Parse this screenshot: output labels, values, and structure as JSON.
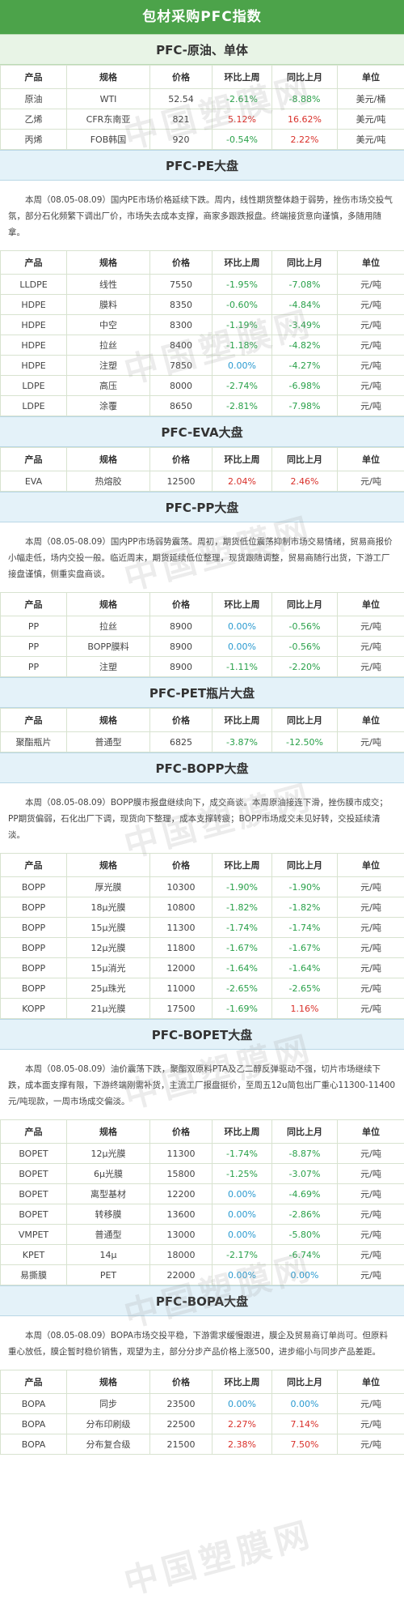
{
  "main_title": "包材采购PFC指数",
  "watermark": "中国塑膜网",
  "headers": [
    "产品",
    "规格",
    "价格",
    "环比上周",
    "同比上月",
    "单位"
  ],
  "sections": [
    {
      "title": "PFC-原油、单体",
      "rows": [
        [
          "原油",
          "WTI",
          "52.54",
          "-2.61%",
          "-8.88%",
          "美元/桶"
        ],
        [
          "乙烯",
          "CFR东南亚",
          "821",
          "5.12%",
          "16.62%",
          "美元/吨"
        ],
        [
          "丙烯",
          "FOB韩国",
          "920",
          "-0.54%",
          "2.22%",
          "美元/吨"
        ]
      ]
    },
    {
      "title": "PFC-PE大盘",
      "paragraph": "本周（08.05-08.09）国内PE市场价格延续下跌。周内，线性期货整体趋于弱势，挫伤市场交投气氛，部分石化频繁下调出厂价，市场失去成本支撑，商家多跟跌报盘。终端接货意向谨慎，多随用随拿。",
      "rows": [
        [
          "LLDPE",
          "线性",
          "7550",
          "-1.95%",
          "-7.08%",
          "元/吨"
        ],
        [
          "HDPE",
          "膜料",
          "8350",
          "-0.60%",
          "-4.84%",
          "元/吨"
        ],
        [
          "HDPE",
          "中空",
          "8300",
          "-1.19%",
          "-3.49%",
          "元/吨"
        ],
        [
          "HDPE",
          "拉丝",
          "8400",
          "-1.18%",
          "-4.82%",
          "元/吨"
        ],
        [
          "HDPE",
          "注塑",
          "7850",
          "0.00%",
          "-4.27%",
          "元/吨"
        ],
        [
          "LDPE",
          "高压",
          "8000",
          "-2.74%",
          "-6.98%",
          "元/吨"
        ],
        [
          "LDPE",
          "涂覆",
          "8650",
          "-2.81%",
          "-7.98%",
          "元/吨"
        ]
      ]
    },
    {
      "title": "PFC-EVA大盘",
      "rows": [
        [
          "EVA",
          "热熔胶",
          "12500",
          "2.04%",
          "2.46%",
          "元/吨"
        ]
      ]
    },
    {
      "title": "PFC-PP大盘",
      "paragraph": "本周（08.05-08.09）国内PP市场弱势震荡。周初，期货低位震荡抑制市场交易情绪，贸易商报价小幅走低，场内交投一般。临近周末，期货延续低位整理，现货跟随调整，贸易商随行出货，下游工厂接盘谨慎，侧重实盘商谈。",
      "rows": [
        [
          "PP",
          "拉丝",
          "8900",
          "0.00%",
          "-0.56%",
          "元/吨"
        ],
        [
          "PP",
          "BOPP膜料",
          "8900",
          "0.00%",
          "-0.56%",
          "元/吨"
        ],
        [
          "PP",
          "注塑",
          "8900",
          "-1.11%",
          "-2.20%",
          "元/吨"
        ]
      ]
    },
    {
      "title": "PFC-PET瓶片大盘",
      "rows": [
        [
          "聚酯瓶片",
          "普通型",
          "6825",
          "-3.87%",
          "-12.50%",
          "元/吨"
        ]
      ]
    },
    {
      "title": "PFC-BOPP大盘",
      "paragraph": "本周（08.05-08.09）BOPP膜市报盘继续向下，成交商谈。本周原油接连下滑，挫伤膜市成交；PP期货偏弱，石化出厂下调，现货向下整理，成本支撑转疲；BOPP市场成交未见好转，交投延续清淡。",
      "rows": [
        [
          "BOPP",
          "厚光膜",
          "10300",
          "-1.90%",
          "-1.90%",
          "元/吨"
        ],
        [
          "BOPP",
          "18μ光膜",
          "10800",
          "-1.82%",
          "-1.82%",
          "元/吨"
        ],
        [
          "BOPP",
          "15μ光膜",
          "11300",
          "-1.74%",
          "-1.74%",
          "元/吨"
        ],
        [
          "BOPP",
          "12μ光膜",
          "11800",
          "-1.67%",
          "-1.67%",
          "元/吨"
        ],
        [
          "BOPP",
          "15μ消光",
          "12000",
          "-1.64%",
          "-1.64%",
          "元/吨"
        ],
        [
          "BOPP",
          "25μ珠光",
          "11000",
          "-2.65%",
          "-2.65%",
          "元/吨"
        ],
        [
          "KOPP",
          "21μ光膜",
          "17500",
          "-1.69%",
          "1.16%",
          "元/吨"
        ]
      ]
    },
    {
      "title": "PFC-BOPET大盘",
      "paragraph": "本周（08.05-08.09）油价震荡下跌，聚酯双原料PTA及乙二醇反弹驱动不强，切片市场继续下跌，成本面支撑有限，下游终端刚需补货，主流工厂报盘挺价，至周五12u简包出厂重心11300-11400元/吨现款，一周市场成交偏淡。",
      "rows": [
        [
          "BOPET",
          "12μ光膜",
          "11300",
          "-1.74%",
          "-8.87%",
          "元/吨"
        ],
        [
          "BOPET",
          "6μ光膜",
          "15800",
          "-1.25%",
          "-3.07%",
          "元/吨"
        ],
        [
          "BOPET",
          "离型基材",
          "12200",
          "0.00%",
          "-4.69%",
          "元/吨"
        ],
        [
          "BOPET",
          "转移膜",
          "13600",
          "0.00%",
          "-2.86%",
          "元/吨"
        ],
        [
          "VMPET",
          "普通型",
          "13000",
          "0.00%",
          "-5.80%",
          "元/吨"
        ],
        [
          "KPET",
          "14μ",
          "18000",
          "-2.17%",
          "-6.74%",
          "元/吨"
        ],
        [
          "易撕膜",
          "PET",
          "22000",
          "0.00%",
          "0.00%",
          "元/吨"
        ]
      ]
    },
    {
      "title": "PFC-BOPA大盘",
      "paragraph": "本周（08.05-08.09）BOPA市场交投平稳，下游需求缓慢跟进，膜企及贸易商订单尚可。但原料重心放低，膜企暂时稳价销售，观望为主，部分分步产品价格上涨500，进步缩小与同步产品差距。",
      "rows": [
        [
          "BOPA",
          "同步",
          "23500",
          "0.00%",
          "0.00%",
          "元/吨"
        ],
        [
          "BOPA",
          "分布印刷级",
          "22500",
          "2.27%",
          "7.14%",
          "元/吨"
        ],
        [
          "BOPA",
          "分布复合级",
          "21500",
          "2.38%",
          "7.50%",
          "元/吨"
        ]
      ]
    }
  ]
}
